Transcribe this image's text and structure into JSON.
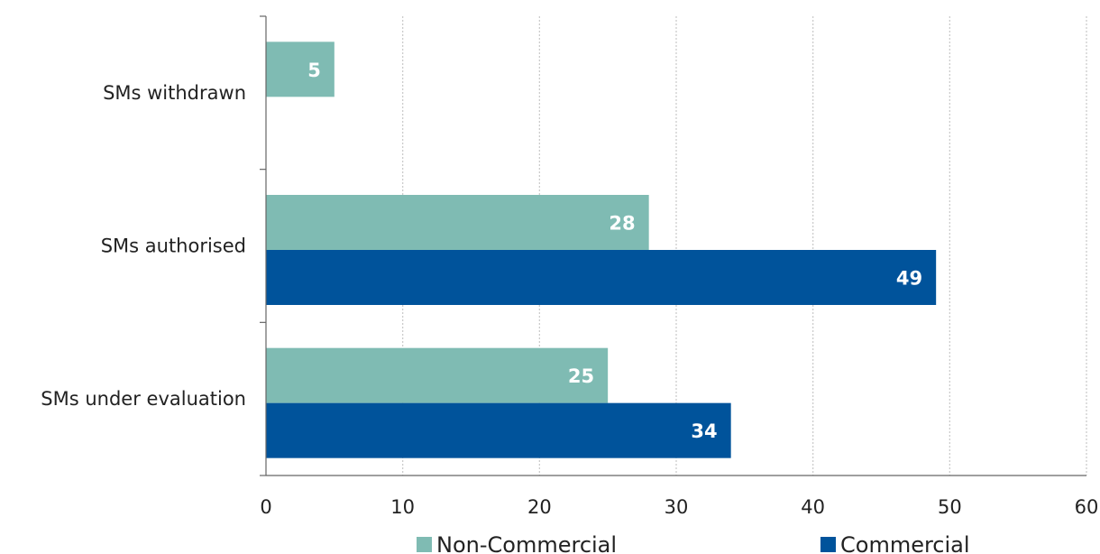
{
  "chart_data": {
    "type": "bar",
    "orientation": "horizontal",
    "categories": [
      "SMs withdrawn",
      "SMs authorised",
      "SMs under evaluation"
    ],
    "series": [
      {
        "name": "Non-Commercial",
        "color": "#7fbbb3",
        "values": [
          5,
          28,
          25
        ]
      },
      {
        "name": "Commercial",
        "color": "#00539b",
        "values": [
          null,
          49,
          34
        ]
      }
    ],
    "xlim": [
      0,
      60
    ],
    "x_ticks": [
      0,
      10,
      20,
      30,
      40,
      50,
      60
    ],
    "grid": "vertical",
    "legend": "bottom"
  }
}
